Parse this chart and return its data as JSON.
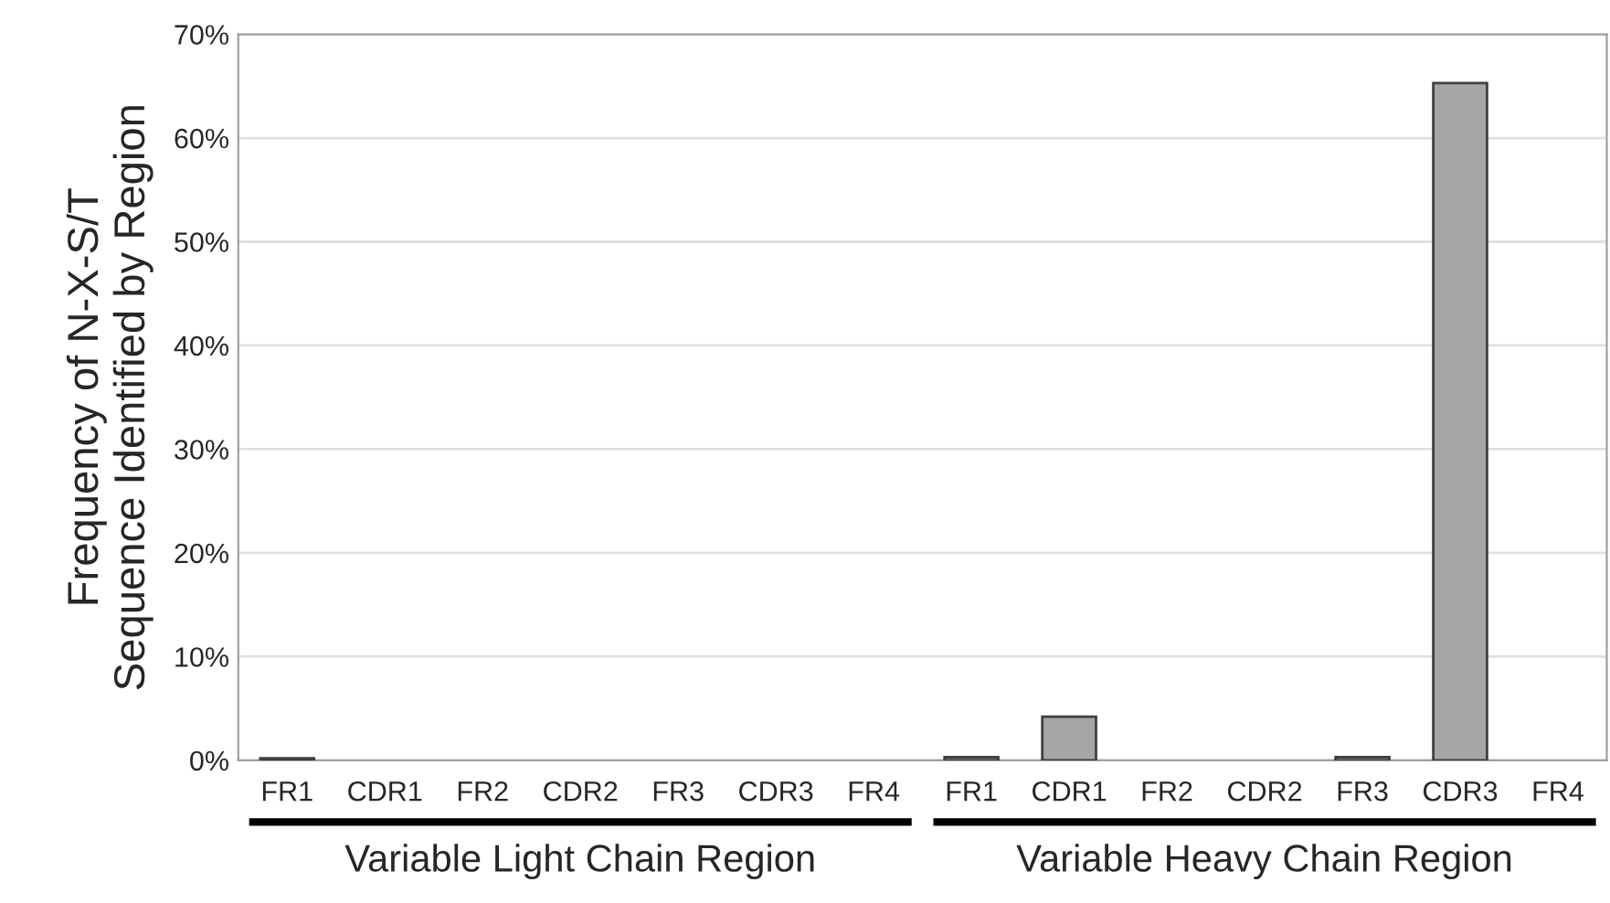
{
  "chart_data": {
    "type": "bar",
    "ylabel": "Frequency of N-X-S/T\nSequence Identified by Region",
    "categories": [
      "FR1",
      "CDR1",
      "FR2",
      "CDR2",
      "FR3",
      "CDR3",
      "FR4",
      "FR1",
      "CDR1",
      "FR2",
      "CDR2",
      "FR3",
      "CDR3",
      "FR4"
    ],
    "values": [
      0.2,
      0,
      0,
      0,
      0,
      0,
      0,
      0.3,
      4.2,
      0,
      0,
      0.3,
      65.3,
      0
    ],
    "color": "#a6a6a6",
    "ylim": [
      0,
      70
    ],
    "yticks": [
      {
        "value": 0,
        "label": "0%"
      },
      {
        "value": 10,
        "label": "10%"
      },
      {
        "value": 20,
        "label": "20%"
      },
      {
        "value": 30,
        "label": "30%"
      },
      {
        "value": 40,
        "label": "40%"
      },
      {
        "value": 50,
        "label": "50%"
      },
      {
        "value": 60,
        "label": "60%"
      },
      {
        "value": 70,
        "label": "70%"
      }
    ],
    "grid": "y",
    "annotations": [
      "Variable Light Chain Region",
      "Variable Heavy Chain Region"
    ]
  }
}
